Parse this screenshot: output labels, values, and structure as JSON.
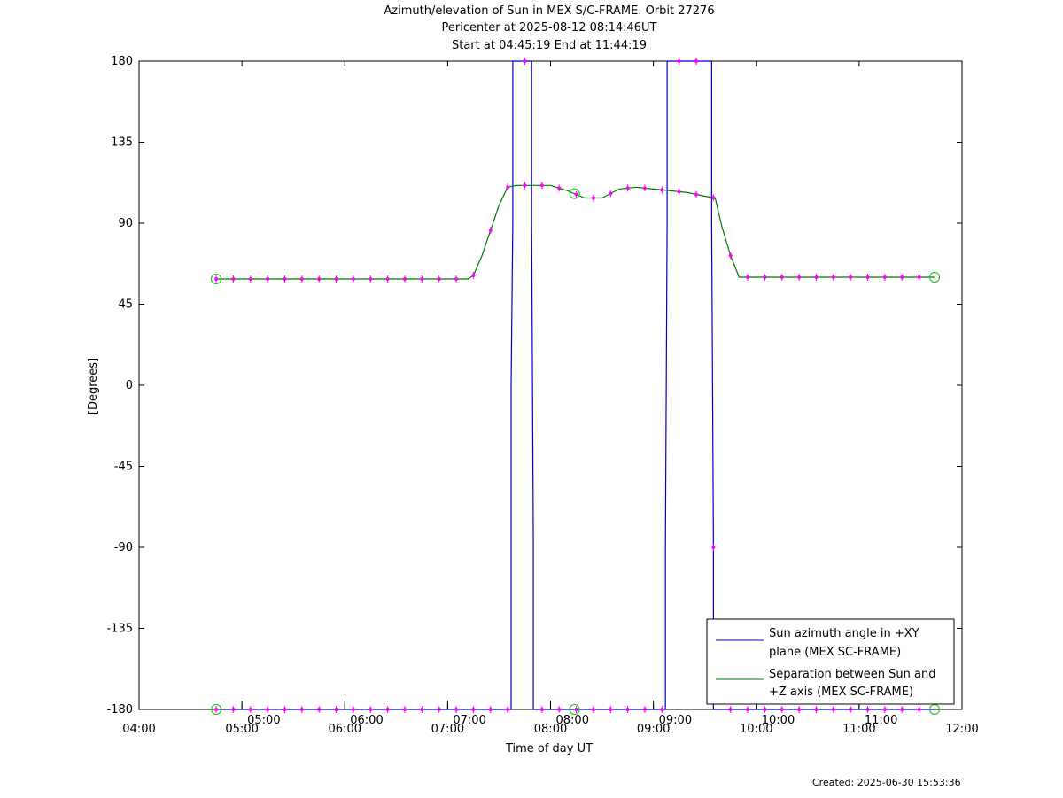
{
  "titles": {
    "line1": "Azimuth/elevation of Sun in MEX S/C-FRAME.  Orbit 27276",
    "line2": "Pericenter at 2025-08-12 08:14:46UT",
    "line3": "Start at 04:45:19 End at 11:44:19"
  },
  "created": "Created: 2025-06-30 15:53:36",
  "colors": {
    "azimuth": "#0000cc",
    "separation": "#007700",
    "markers": "#ff00ff",
    "circles": "#00cc00"
  },
  "chart_data": {
    "type": "line",
    "xlabel": "Time of day UT",
    "ylabel": "[Degrees]",
    "xlim": [
      "04:00",
      "12:00"
    ],
    "ylim": [
      -180,
      180
    ],
    "x_ticks": [
      "04:00",
      "05:00",
      "06:00",
      "07:00",
      "08:00",
      "09:00",
      "10:00",
      "11:00",
      "12:00"
    ],
    "y_ticks": [
      180,
      135,
      90,
      45,
      0,
      -45,
      -90,
      -135,
      -180
    ],
    "secondary_tick_labels": [
      "05:00",
      "06:00",
      "07:00",
      "08:00",
      "09:00",
      "10:00",
      "11:00"
    ],
    "grid": false,
    "legend_position": "bottom-right",
    "series": [
      {
        "name": "Sun azimuth angle in +XY plane (MEX SC-FRAME)",
        "legend_lines": [
          "Sun azimuth angle in +XY",
          "plane (MEX SC-FRAME)"
        ],
        "x": [
          "04:45",
          "07:37",
          "07:37",
          "07:38",
          "07:38",
          "07:49",
          "07:49",
          "07:50",
          "07:50",
          "09:07",
          "09:07",
          "09:08",
          "09:08",
          "09:34",
          "09:34",
          "09:35",
          "09:35",
          "11:44"
        ],
        "y": [
          -180,
          -180,
          0,
          90,
          180,
          180,
          90,
          -90,
          -180,
          -180,
          -90,
          90,
          180,
          180,
          90,
          -90,
          -180,
          -180
        ]
      },
      {
        "name": "Separation between Sun and +Z axis (MEX SC-FRAME)",
        "legend_lines": [
          "Separation between Sun and",
          "+Z axis (MEX SC-FRAME)"
        ],
        "x": [
          "04:45",
          "07:12",
          "07:15",
          "07:20",
          "07:25",
          "07:30",
          "07:35",
          "07:40",
          "07:50",
          "08:00",
          "08:10",
          "08:15",
          "08:20",
          "08:30",
          "08:40",
          "08:50",
          "09:00",
          "09:10",
          "09:20",
          "09:30",
          "09:36",
          "09:40",
          "09:45",
          "09:50",
          "11:44"
        ],
        "y": [
          59,
          59,
          61,
          72,
          86,
          100,
          110,
          111,
          111,
          111,
          108,
          106,
          104,
          104,
          109,
          110,
          109,
          108,
          107,
          105,
          104,
          88,
          72,
          60,
          60
        ]
      }
    ]
  }
}
